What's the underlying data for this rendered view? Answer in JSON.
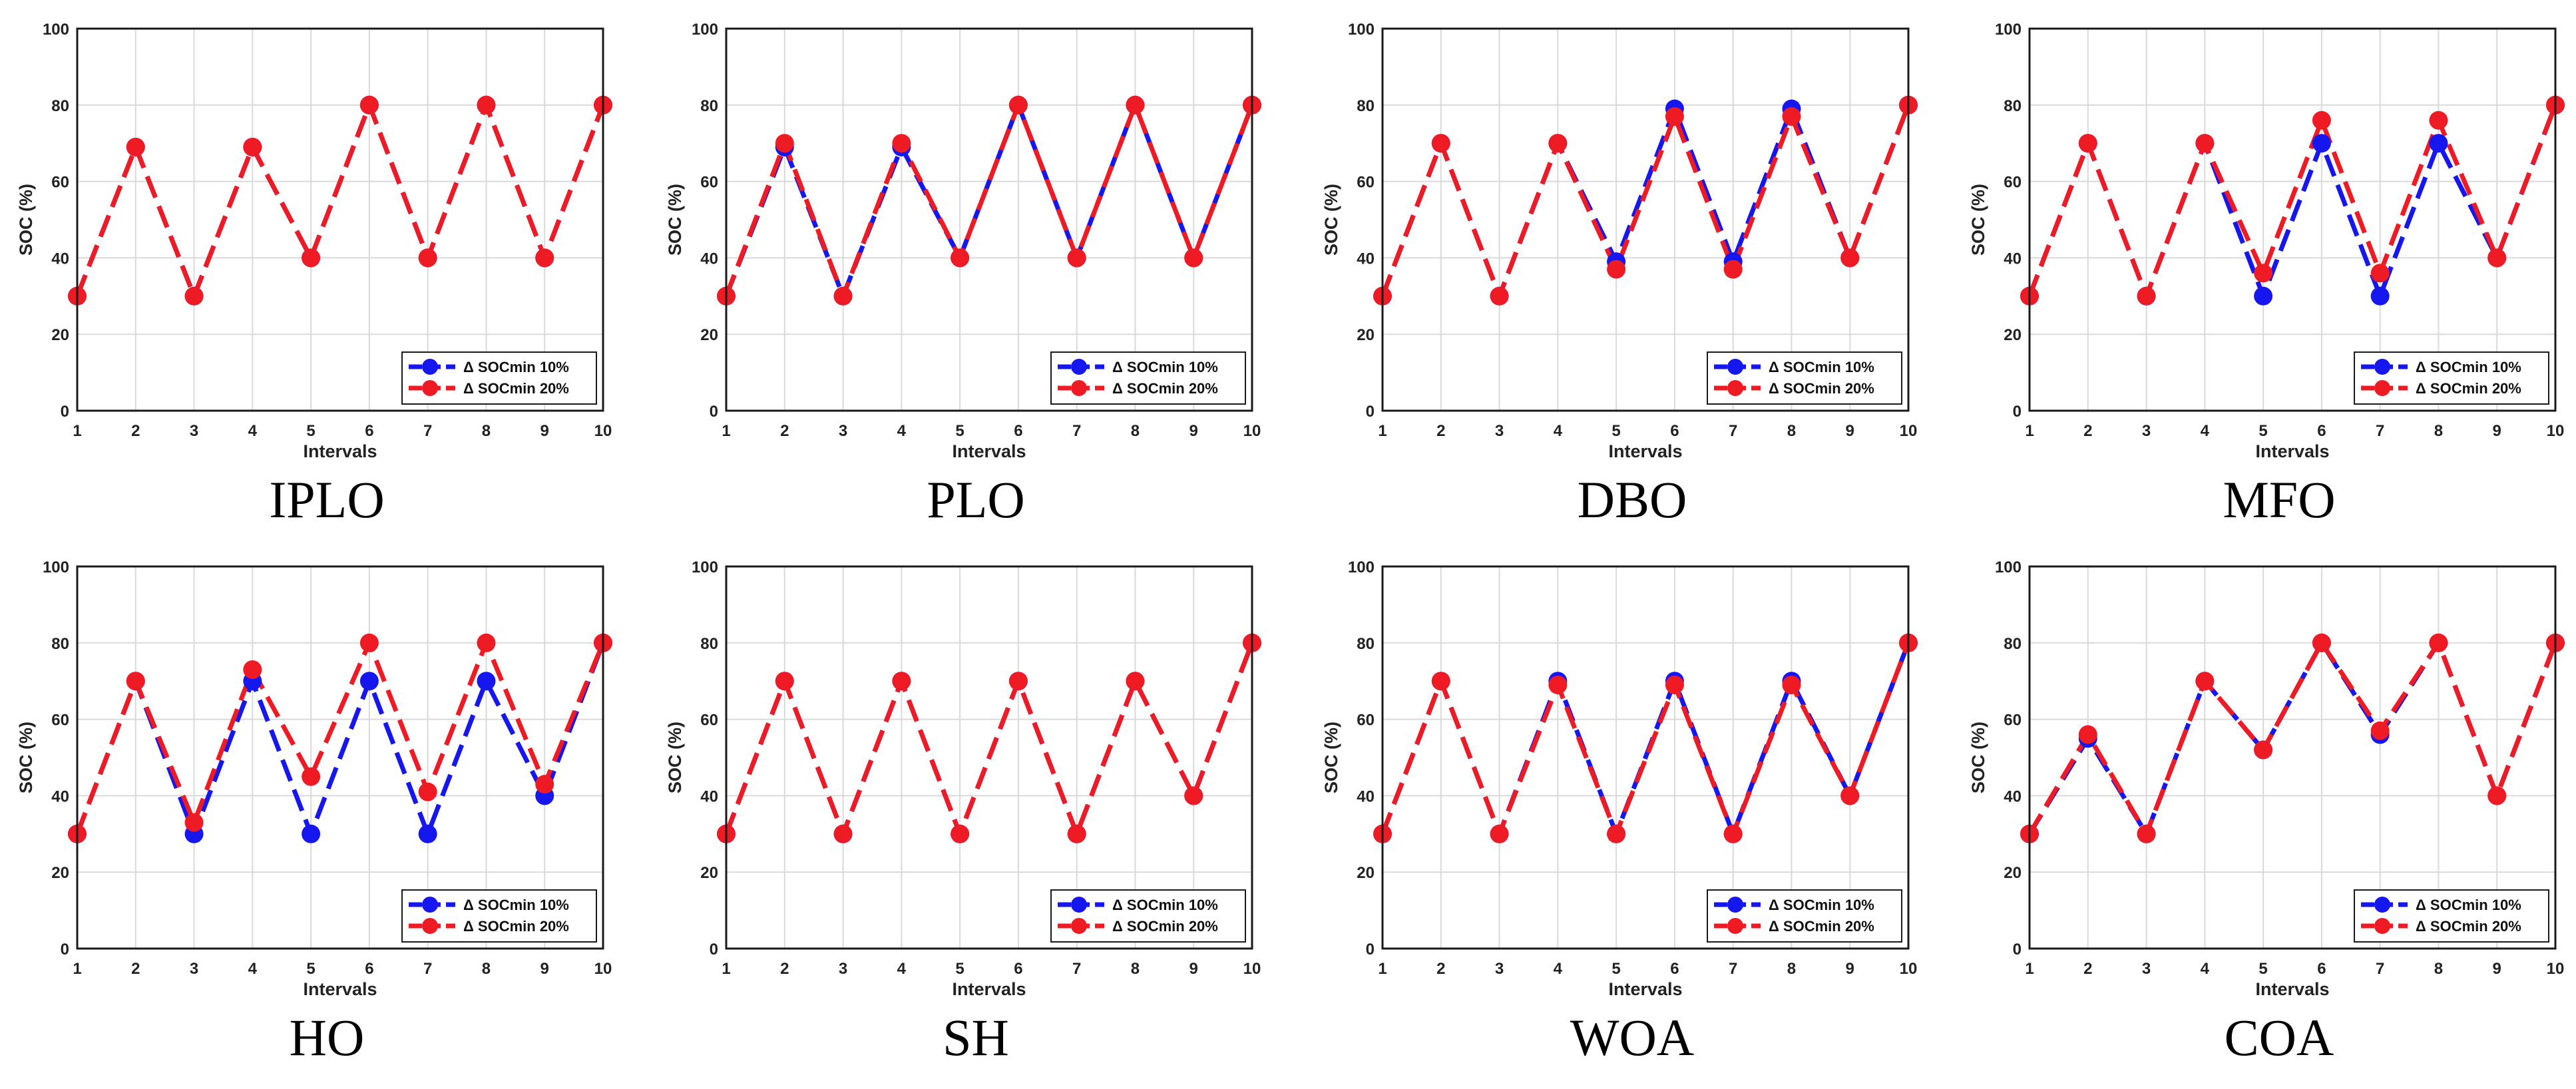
{
  "colors": {
    "blue": "#1616ee",
    "red": "#ee1b24"
  },
  "chart_data": [
    {
      "type": "line",
      "title": "IPLO",
      "xlabel": "Intervals",
      "ylabel": "SOC (%)",
      "xlim": [
        1,
        10
      ],
      "ylim": [
        0,
        100
      ],
      "x": [
        1,
        2,
        3,
        4,
        5,
        6,
        7,
        8,
        9,
        10
      ],
      "xticks": [
        "1",
        "2",
        "3",
        "4",
        "5",
        "6",
        "7",
        "8",
        "9",
        "10"
      ],
      "yticks": [
        "0",
        "20",
        "40",
        "60",
        "80",
        "100"
      ],
      "grid": true,
      "legend": "bottom-right",
      "series": [
        {
          "name": "Δ SOCmin 10%",
          "color": "blue",
          "values": [
            30,
            69,
            30,
            69,
            40,
            80,
            40,
            80,
            40,
            80
          ]
        },
        {
          "name": "Δ SOCmin 20%",
          "color": "red",
          "values": [
            30,
            69,
            30,
            69,
            40,
            80,
            40,
            80,
            40,
            80
          ]
        }
      ]
    },
    {
      "type": "line",
      "title": "PLO",
      "xlabel": "Intervals",
      "ylabel": "SOC (%)",
      "xlim": [
        1,
        10
      ],
      "ylim": [
        0,
        100
      ],
      "x": [
        1,
        2,
        3,
        4,
        5,
        6,
        7,
        8,
        9,
        10
      ],
      "xticks": [
        "1",
        "2",
        "3",
        "4",
        "5",
        "6",
        "7",
        "8",
        "9",
        "10"
      ],
      "yticks": [
        "0",
        "20",
        "40",
        "60",
        "80",
        "100"
      ],
      "grid": true,
      "legend": "bottom-right",
      "series": [
        {
          "name": "Δ SOCmin 10%",
          "color": "blue",
          "values": [
            30,
            69,
            30,
            69,
            40,
            80,
            40,
            80,
            40,
            80
          ]
        },
        {
          "name": "Δ SOCmin 20%",
          "color": "red",
          "values": [
            30,
            70,
            30,
            70,
            40,
            80,
            40,
            80,
            40,
            80
          ]
        }
      ]
    },
    {
      "type": "line",
      "title": "DBO",
      "xlabel": "Intervals",
      "ylabel": "SOC (%)",
      "xlim": [
        1,
        10
      ],
      "ylim": [
        0,
        100
      ],
      "x": [
        1,
        2,
        3,
        4,
        5,
        6,
        7,
        8,
        9,
        10
      ],
      "xticks": [
        "1",
        "2",
        "3",
        "4",
        "5",
        "6",
        "7",
        "8",
        "9",
        "10"
      ],
      "yticks": [
        "0",
        "20",
        "40",
        "60",
        "80",
        "100"
      ],
      "grid": true,
      "legend": "bottom-right",
      "series": [
        {
          "name": "Δ SOCmin 10%",
          "color": "blue",
          "values": [
            30,
            70,
            30,
            70,
            39,
            79,
            39,
            79,
            40,
            80
          ]
        },
        {
          "name": "Δ SOCmin 20%",
          "color": "red",
          "values": [
            30,
            70,
            30,
            70,
            37,
            77,
            37,
            77,
            40,
            80
          ]
        }
      ]
    },
    {
      "type": "line",
      "title": "MFO",
      "xlabel": "Intervals",
      "ylabel": "SOC (%)",
      "xlim": [
        1,
        10
      ],
      "ylim": [
        0,
        100
      ],
      "x": [
        1,
        2,
        3,
        4,
        5,
        6,
        7,
        8,
        9,
        10
      ],
      "xticks": [
        "1",
        "2",
        "3",
        "4",
        "5",
        "6",
        "7",
        "8",
        "9",
        "10"
      ],
      "yticks": [
        "0",
        "20",
        "40",
        "60",
        "80",
        "100"
      ],
      "grid": true,
      "legend": "bottom-right",
      "series": [
        {
          "name": "Δ SOCmin 10%",
          "color": "blue",
          "values": [
            30,
            70,
            30,
            70,
            30,
            70,
            30,
            70,
            40,
            80
          ]
        },
        {
          "name": "Δ SOCmin 20%",
          "color": "red",
          "values": [
            30,
            70,
            30,
            70,
            36,
            76,
            36,
            76,
            40,
            80
          ]
        }
      ]
    },
    {
      "type": "line",
      "title": "HO",
      "xlabel": "Intervals",
      "ylabel": "SOC (%)",
      "xlim": [
        1,
        10
      ],
      "ylim": [
        0,
        100
      ],
      "x": [
        1,
        2,
        3,
        4,
        5,
        6,
        7,
        8,
        9,
        10
      ],
      "xticks": [
        "1",
        "2",
        "3",
        "4",
        "5",
        "6",
        "7",
        "8",
        "9",
        "10"
      ],
      "yticks": [
        "0",
        "20",
        "40",
        "60",
        "80",
        "100"
      ],
      "grid": true,
      "legend": "bottom-right",
      "series": [
        {
          "name": "Δ SOCmin 10%",
          "color": "blue",
          "values": [
            30,
            70,
            30,
            70,
            30,
            70,
            30,
            70,
            40,
            80
          ]
        },
        {
          "name": "Δ SOCmin 20%",
          "color": "red",
          "values": [
            30,
            70,
            33,
            73,
            45,
            80,
            41,
            80,
            43,
            80
          ]
        }
      ]
    },
    {
      "type": "line",
      "title": "SH",
      "xlabel": "Intervals",
      "ylabel": "SOC (%)",
      "xlim": [
        1,
        10
      ],
      "ylim": [
        0,
        100
      ],
      "x": [
        1,
        2,
        3,
        4,
        5,
        6,
        7,
        8,
        9,
        10
      ],
      "xticks": [
        "1",
        "2",
        "3",
        "4",
        "5",
        "6",
        "7",
        "8",
        "9",
        "10"
      ],
      "yticks": [
        "0",
        "20",
        "40",
        "60",
        "80",
        "100"
      ],
      "grid": true,
      "legend": "bottom-right",
      "series": [
        {
          "name": "Δ SOCmin 10%",
          "color": "blue",
          "values": [
            30,
            70,
            30,
            70,
            30,
            70,
            30,
            70,
            40,
            80
          ]
        },
        {
          "name": "Δ SOCmin 20%",
          "color": "red",
          "values": [
            30,
            70,
            30,
            70,
            30,
            70,
            30,
            70,
            40,
            80
          ]
        }
      ]
    },
    {
      "type": "line",
      "title": "WOA",
      "xlabel": "Intervals",
      "ylabel": "SOC (%)",
      "xlim": [
        1,
        10
      ],
      "ylim": [
        0,
        100
      ],
      "x": [
        1,
        2,
        3,
        4,
        5,
        6,
        7,
        8,
        9,
        10
      ],
      "xticks": [
        "1",
        "2",
        "3",
        "4",
        "5",
        "6",
        "7",
        "8",
        "9",
        "10"
      ],
      "yticks": [
        "0",
        "20",
        "40",
        "60",
        "80",
        "100"
      ],
      "grid": true,
      "legend": "bottom-right",
      "series": [
        {
          "name": "Δ SOCmin 10%",
          "color": "blue",
          "values": [
            30,
            70,
            30,
            70,
            30,
            70,
            30,
            70,
            40,
            80
          ]
        },
        {
          "name": "Δ SOCmin 20%",
          "color": "red",
          "values": [
            30,
            70,
            30,
            69,
            30,
            69,
            30,
            69,
            40,
            80
          ]
        }
      ]
    },
    {
      "type": "line",
      "title": "COA",
      "xlabel": "Intervals",
      "ylabel": "SOC (%)",
      "xlim": [
        1,
        10
      ],
      "ylim": [
        0,
        100
      ],
      "x": [
        1,
        2,
        3,
        4,
        5,
        6,
        7,
        8,
        9,
        10
      ],
      "xticks": [
        "1",
        "2",
        "3",
        "4",
        "5",
        "6",
        "7",
        "8",
        "9",
        "10"
      ],
      "yticks": [
        "0",
        "20",
        "40",
        "60",
        "80",
        "100"
      ],
      "grid": true,
      "legend": "bottom-right",
      "series": [
        {
          "name": "Δ SOCmin 10%",
          "color": "blue",
          "values": [
            30,
            55,
            30,
            70,
            52,
            80,
            56,
            80,
            40,
            80
          ]
        },
        {
          "name": "Δ SOCmin 20%",
          "color": "red",
          "values": [
            30,
            56,
            30,
            70,
            52,
            80,
            57,
            80,
            40,
            80
          ]
        }
      ]
    }
  ]
}
